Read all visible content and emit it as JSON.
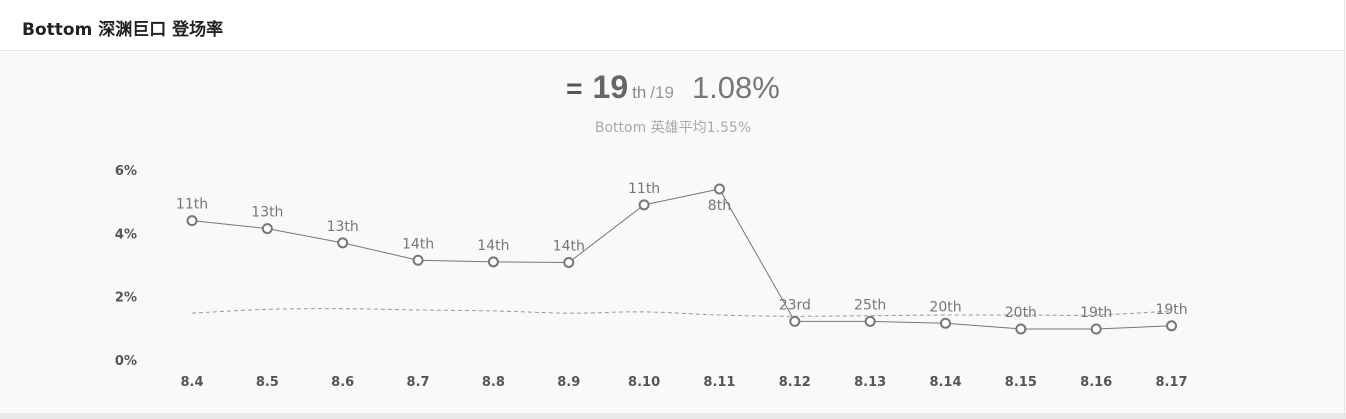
{
  "header": {
    "title": "Bottom 深渊巨口 登场率"
  },
  "summary": {
    "trend_symbol": "=",
    "rank": "19",
    "rank_suffix": "th",
    "rank_total": "/19",
    "rate": "1.08%",
    "average_text": "Bottom 英雄平均1.55%"
  },
  "colors": {
    "line": "#777777",
    "average_line": "#999999",
    "background": "#f9f9f9"
  },
  "chart_data": {
    "type": "line",
    "categories": [
      "8.4",
      "8.5",
      "8.6",
      "8.7",
      "8.8",
      "8.9",
      "8.10",
      "8.11",
      "8.12",
      "8.13",
      "8.14",
      "8.15",
      "8.16",
      "8.17"
    ],
    "y_ticks": [
      "6%",
      "4%",
      "2%",
      "0%"
    ],
    "ylim": [
      0,
      6
    ],
    "grid": false,
    "series": [
      {
        "values": [
          4.4,
          4.15,
          3.7,
          3.15,
          3.1,
          3.08,
          4.9,
          5.4,
          1.22,
          1.22,
          1.16,
          0.98,
          0.98,
          1.08
        ],
        "labels": [
          "11th",
          "13th",
          "13th",
          "14th",
          "14th",
          "14th",
          "11th",
          "8th",
          "23rd",
          "25th",
          "20th",
          "20th",
          "19th",
          "19th"
        ]
      },
      {
        "line_style": "dashed",
        "values": [
          1.48,
          1.6,
          1.62,
          1.58,
          1.55,
          1.48,
          1.52,
          1.42,
          1.38,
          1.4,
          1.42,
          1.42,
          1.42,
          1.55
        ]
      }
    ]
  }
}
